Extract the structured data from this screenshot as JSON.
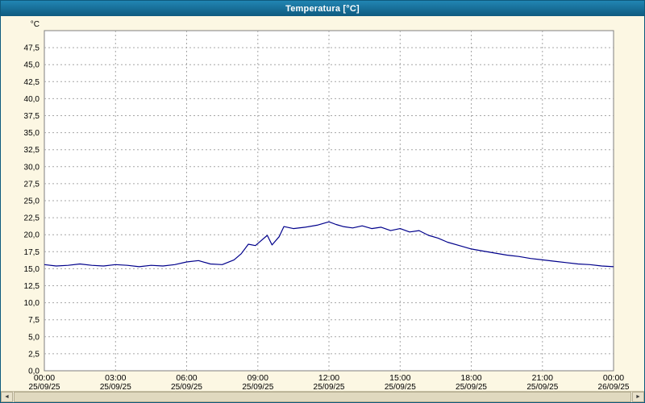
{
  "window": {
    "title": "Temperatura [°C]"
  },
  "colors": {
    "titlebar": "#16688f",
    "background": "#fcf7e3",
    "plot_background": "#ffffff",
    "grid": "#a6a6a6",
    "plot_border": "#7f7f7f",
    "line": "#00008b",
    "axis_text": "#000000"
  },
  "scrollbar": {
    "left_arrow": "◄",
    "right_arrow": "►"
  },
  "chart_data": {
    "type": "line",
    "title": "Temperatura [°C]",
    "xlabel": "",
    "ylabel": "°C",
    "ylim": [
      0,
      50
    ],
    "xlim": [
      0,
      24
    ],
    "grid": true,
    "legend_position": "none",
    "y_ticks": [
      {
        "value": 0,
        "label": "0,0"
      },
      {
        "value": 2.5,
        "label": "2,5"
      },
      {
        "value": 5,
        "label": "5,0"
      },
      {
        "value": 7.5,
        "label": "7,5"
      },
      {
        "value": 10,
        "label": "10,0"
      },
      {
        "value": 12.5,
        "label": "12,5"
      },
      {
        "value": 15,
        "label": "15,0"
      },
      {
        "value": 17.5,
        "label": "17,5"
      },
      {
        "value": 20,
        "label": "20,0"
      },
      {
        "value": 22.5,
        "label": "22,5"
      },
      {
        "value": 25,
        "label": "25,0"
      },
      {
        "value": 27.5,
        "label": "27,5"
      },
      {
        "value": 30,
        "label": "30,0"
      },
      {
        "value": 32.5,
        "label": "32,5"
      },
      {
        "value": 35,
        "label": "35,0"
      },
      {
        "value": 37.5,
        "label": "37,5"
      },
      {
        "value": 40,
        "label": "40,0"
      },
      {
        "value": 42.5,
        "label": "42,5"
      },
      {
        "value": 45,
        "label": "45,0"
      },
      {
        "value": 47.5,
        "label": "47,5"
      }
    ],
    "x_ticks": [
      {
        "hour": 0,
        "time": "00:00",
        "date": "25/09/25"
      },
      {
        "hour": 3,
        "time": "03:00",
        "date": "25/09/25"
      },
      {
        "hour": 6,
        "time": "06:00",
        "date": "25/09/25"
      },
      {
        "hour": 9,
        "time": "09:00",
        "date": "25/09/25"
      },
      {
        "hour": 12,
        "time": "12:00",
        "date": "25/09/25"
      },
      {
        "hour": 15,
        "time": "15:00",
        "date": "25/09/25"
      },
      {
        "hour": 18,
        "time": "18:00",
        "date": "25/09/25"
      },
      {
        "hour": 21,
        "time": "21:00",
        "date": "25/09/25"
      },
      {
        "hour": 24,
        "time": "00:00",
        "date": "26/09/25"
      }
    ],
    "series": [
      {
        "name": "Temperatura",
        "color": "#00008b",
        "x": [
          0,
          0.5,
          1,
          1.5,
          2,
          2.5,
          3,
          3.5,
          4,
          4.5,
          5,
          5.5,
          6,
          6.5,
          7,
          7.5,
          8,
          8.3,
          8.6,
          8.9,
          9.1,
          9.4,
          9.6,
          9.9,
          10.1,
          10.5,
          11,
          11.5,
          12,
          12.3,
          12.6,
          13,
          13.4,
          13.8,
          14.2,
          14.6,
          15,
          15.4,
          15.8,
          16.2,
          16.6,
          17,
          17.5,
          18,
          18.5,
          19,
          19.5,
          20,
          20.5,
          21,
          21.5,
          22,
          22.5,
          23,
          23.5,
          24
        ],
        "y": [
          15.6,
          15.4,
          15.5,
          15.7,
          15.5,
          15.4,
          15.6,
          15.5,
          15.3,
          15.5,
          15.4,
          15.6,
          16.0,
          16.2,
          15.7,
          15.6,
          16.3,
          17.2,
          18.6,
          18.4,
          19.0,
          19.9,
          18.5,
          19.7,
          21.2,
          20.9,
          21.1,
          21.4,
          21.9,
          21.5,
          21.2,
          21.0,
          21.3,
          20.9,
          21.1,
          20.6,
          20.9,
          20.4,
          20.6,
          19.9,
          19.5,
          18.9,
          18.4,
          17.9,
          17.6,
          17.3,
          17.0,
          16.8,
          16.5,
          16.3,
          16.1,
          15.9,
          15.7,
          15.6,
          15.4,
          15.3
        ]
      }
    ]
  }
}
